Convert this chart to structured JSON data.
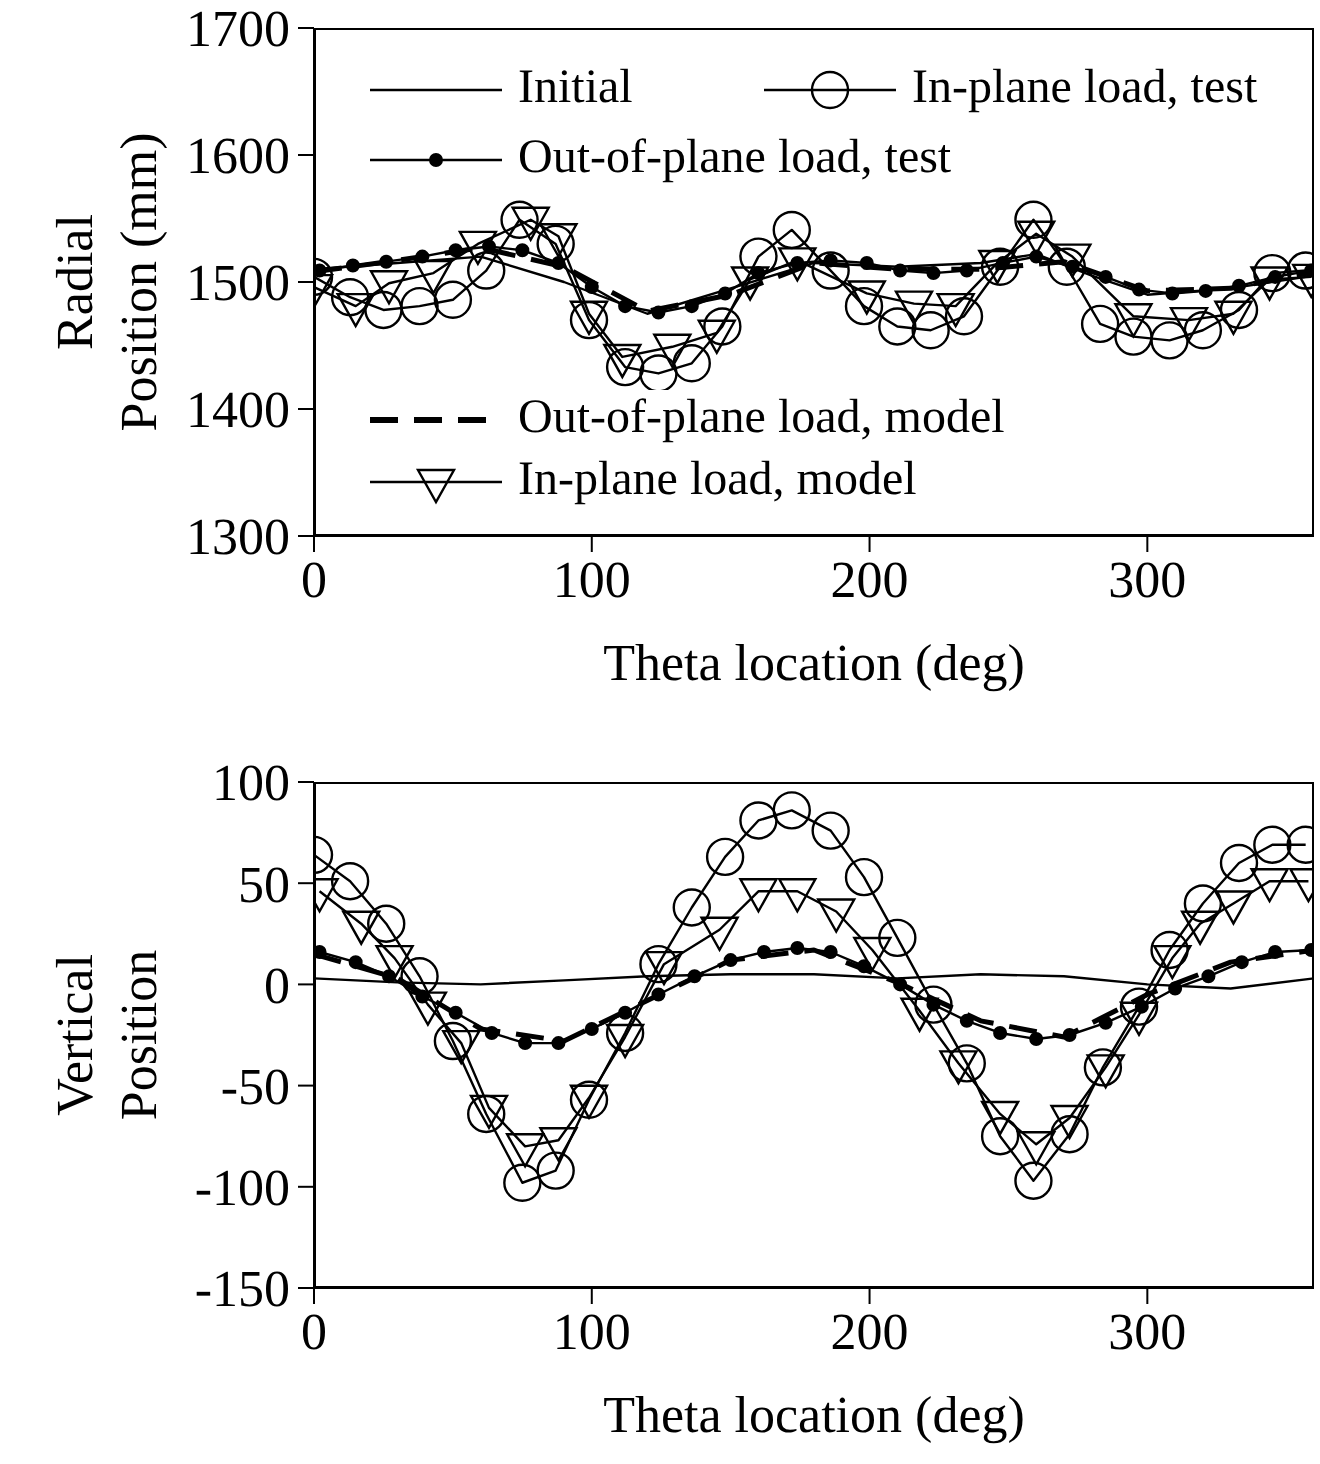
{
  "chart_data": [
    {
      "type": "line",
      "xlabel": "Theta location (deg)",
      "ylabel": "Radial Position (mm)",
      "xlim": [
        0,
        360
      ],
      "xticks": [
        0,
        100,
        200,
        300
      ],
      "ylim": [
        1300,
        1700
      ],
      "yticks": [
        1300,
        1400,
        1500,
        1600,
        1700
      ],
      "legend": "center",
      "series": [
        {
          "name": "Initial",
          "color": "#000000",
          "marker": "none",
          "line_style": "solid",
          "x": [
            0,
            30,
            60,
            90,
            120,
            150,
            180,
            210,
            240,
            260,
            280,
            300,
            330,
            360
          ],
          "values": [
            1510,
            1515,
            1520,
            1500,
            1475,
            1495,
            1515,
            1512,
            1515,
            1522,
            1505,
            1490,
            1495,
            1505
          ]
        },
        {
          "name": "In-plane load, test",
          "color": "#000000",
          "marker": "circle",
          "line_style": "solid",
          "x": [
            0,
            13,
            25,
            38,
            50,
            62,
            74,
            87,
            99,
            112,
            124,
            136,
            147,
            160,
            172,
            186,
            198,
            210,
            222,
            234,
            247,
            259,
            271,
            283,
            295,
            308,
            320,
            333,
            345,
            357
          ],
          "values": [
            1504,
            1488,
            1478,
            1481,
            1486,
            1509,
            1549,
            1530,
            1470,
            1433,
            1428,
            1436,
            1465,
            1520,
            1541,
            1509,
            1481,
            1465,
            1462,
            1473,
            1512,
            1549,
            1512,
            1467,
            1457,
            1454,
            1462,
            1478,
            1507,
            1509
          ]
        },
        {
          "name": "Out-of-plane load, test",
          "color": "#000000",
          "marker": "circle_filled",
          "line_style": "solid",
          "x": [
            2,
            14,
            26,
            39,
            51,
            63,
            75,
            88,
            100,
            112,
            124,
            136,
            148,
            160,
            174,
            186,
            199,
            211,
            223,
            235,
            248,
            260,
            273,
            285,
            297,
            309,
            321,
            333,
            346,
            359
          ],
          "values": [
            1509,
            1513,
            1516,
            1520,
            1525,
            1528,
            1525,
            1515,
            1496,
            1481,
            1476,
            1481,
            1491,
            1507,
            1515,
            1517,
            1515,
            1509,
            1507,
            1509,
            1515,
            1520,
            1512,
            1504,
            1494,
            1491,
            1493,
            1497,
            1504,
            1509
          ]
        },
        {
          "name": "Out-of-plane load, model",
          "color": "#000000",
          "marker": "none",
          "line_style": "dashed",
          "x": [
            0,
            30,
            60,
            90,
            120,
            150,
            180,
            210,
            240,
            270,
            300,
            330,
            360
          ],
          "values": [
            1508,
            1517,
            1527,
            1512,
            1477,
            1490,
            1515,
            1510,
            1510,
            1516,
            1493,
            1495,
            1508
          ]
        },
        {
          "name": "In-plane load, model",
          "color": "#000000",
          "marker": "triangle",
          "line_style": "solid",
          "x": [
            0,
            15,
            27,
            43,
            59,
            78,
            88,
            99,
            111,
            129,
            145,
            157,
            174,
            199,
            216,
            231,
            246,
            260,
            273,
            295,
            315,
            331,
            344,
            359
          ],
          "values": [
            1496,
            1481,
            1499,
            1507,
            1530,
            1549,
            1536,
            1475,
            1441,
            1449,
            1460,
            1502,
            1517,
            1491,
            1483,
            1481,
            1515,
            1538,
            1520,
            1473,
            1470,
            1475,
            1502,
            1504
          ]
        }
      ]
    },
    {
      "type": "line",
      "xlabel": "Theta location (deg)",
      "ylabel": "Vertical Position",
      "xlim": [
        0,
        360
      ],
      "xticks": [
        0,
        100,
        200,
        300
      ],
      "ylim": [
        -150,
        100
      ],
      "yticks": [
        -150,
        -100,
        -50,
        0,
        50,
        100
      ],
      "legend": false,
      "series": [
        {
          "color": "#000000",
          "marker": "none",
          "line_style": "solid",
          "x": [
            0,
            30,
            60,
            90,
            120,
            150,
            180,
            210,
            240,
            270,
            300,
            330,
            360
          ],
          "values": [
            3,
            1,
            0,
            2,
            4,
            5,
            5,
            3,
            5,
            4,
            0,
            -2,
            3
          ]
        },
        {
          "color": "#000000",
          "marker": "circle",
          "line_style": "solid",
          "x": [
            0,
            13,
            26,
            38,
            50,
            62,
            75,
            87,
            99,
            112,
            124,
            136,
            148,
            160,
            172,
            186,
            198,
            210,
            223,
            235,
            247,
            259,
            272,
            284,
            297,
            308,
            320,
            333,
            345,
            357
          ],
          "values": [
            64,
            51,
            30,
            4,
            -28,
            -64,
            -98,
            -92,
            -57,
            -24,
            10,
            38,
            63,
            81,
            86,
            76,
            53,
            23,
            -10,
            -39,
            -75,
            -97,
            -74,
            -41,
            -11,
            17,
            40,
            60,
            69,
            69
          ]
        },
        {
          "color": "#000000",
          "marker": "circle_filled",
          "line_style": "solid",
          "x": [
            2,
            15,
            27,
            39,
            51,
            64,
            76,
            88,
            100,
            112,
            124,
            137,
            150,
            162,
            174,
            186,
            198,
            211,
            223,
            235,
            247,
            260,
            272,
            285,
            298,
            310,
            322,
            334,
            346,
            359
          ],
          "values": [
            16,
            11,
            4,
            -6,
            -14,
            -24,
            -29,
            -29,
            -22,
            -14,
            -5,
            4,
            12,
            16,
            18,
            16,
            9,
            0,
            -10,
            -18,
            -24,
            -27,
            -25,
            -19,
            -11,
            -2,
            4,
            11,
            16,
            17
          ]
        },
        {
          "color": "#000000",
          "marker": "none",
          "line_style": "dashed",
          "x": [
            0,
            30,
            60,
            90,
            120,
            150,
            180,
            210,
            240,
            270,
            300,
            330,
            360
          ],
          "values": [
            15,
            3,
            -22,
            -28,
            -8,
            12,
            17,
            1,
            -18,
            -26,
            -5,
            11,
            17
          ]
        },
        {
          "color": "#000000",
          "marker": "triangle",
          "line_style": "solid",
          "x": [
            2,
            17,
            29,
            41,
            53,
            63,
            76,
            88,
            99,
            112,
            126,
            146,
            160,
            174,
            188,
            201,
            218,
            232,
            247,
            260,
            272,
            285,
            297,
            309,
            319,
            331,
            344,
            358
          ],
          "values": [
            46,
            30,
            13,
            -10,
            -29,
            -61,
            -80,
            -77,
            -56,
            -26,
            10,
            27,
            46,
            46,
            36,
            17,
            -13,
            -39,
            -64,
            -79,
            -66,
            -41,
            -15,
            13,
            30,
            40,
            51,
            51
          ]
        }
      ]
    }
  ]
}
